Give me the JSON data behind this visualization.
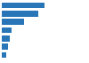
{
  "values": [
    62,
    53,
    32,
    14,
    11,
    9,
    7
  ],
  "bar_color": "#2876b8",
  "background_color": "#ffffff",
  "xlim": [
    0,
    75
  ],
  "bar_height": 0.72,
  "figsize": [
    1.0,
    0.71
  ],
  "dpi": 100
}
